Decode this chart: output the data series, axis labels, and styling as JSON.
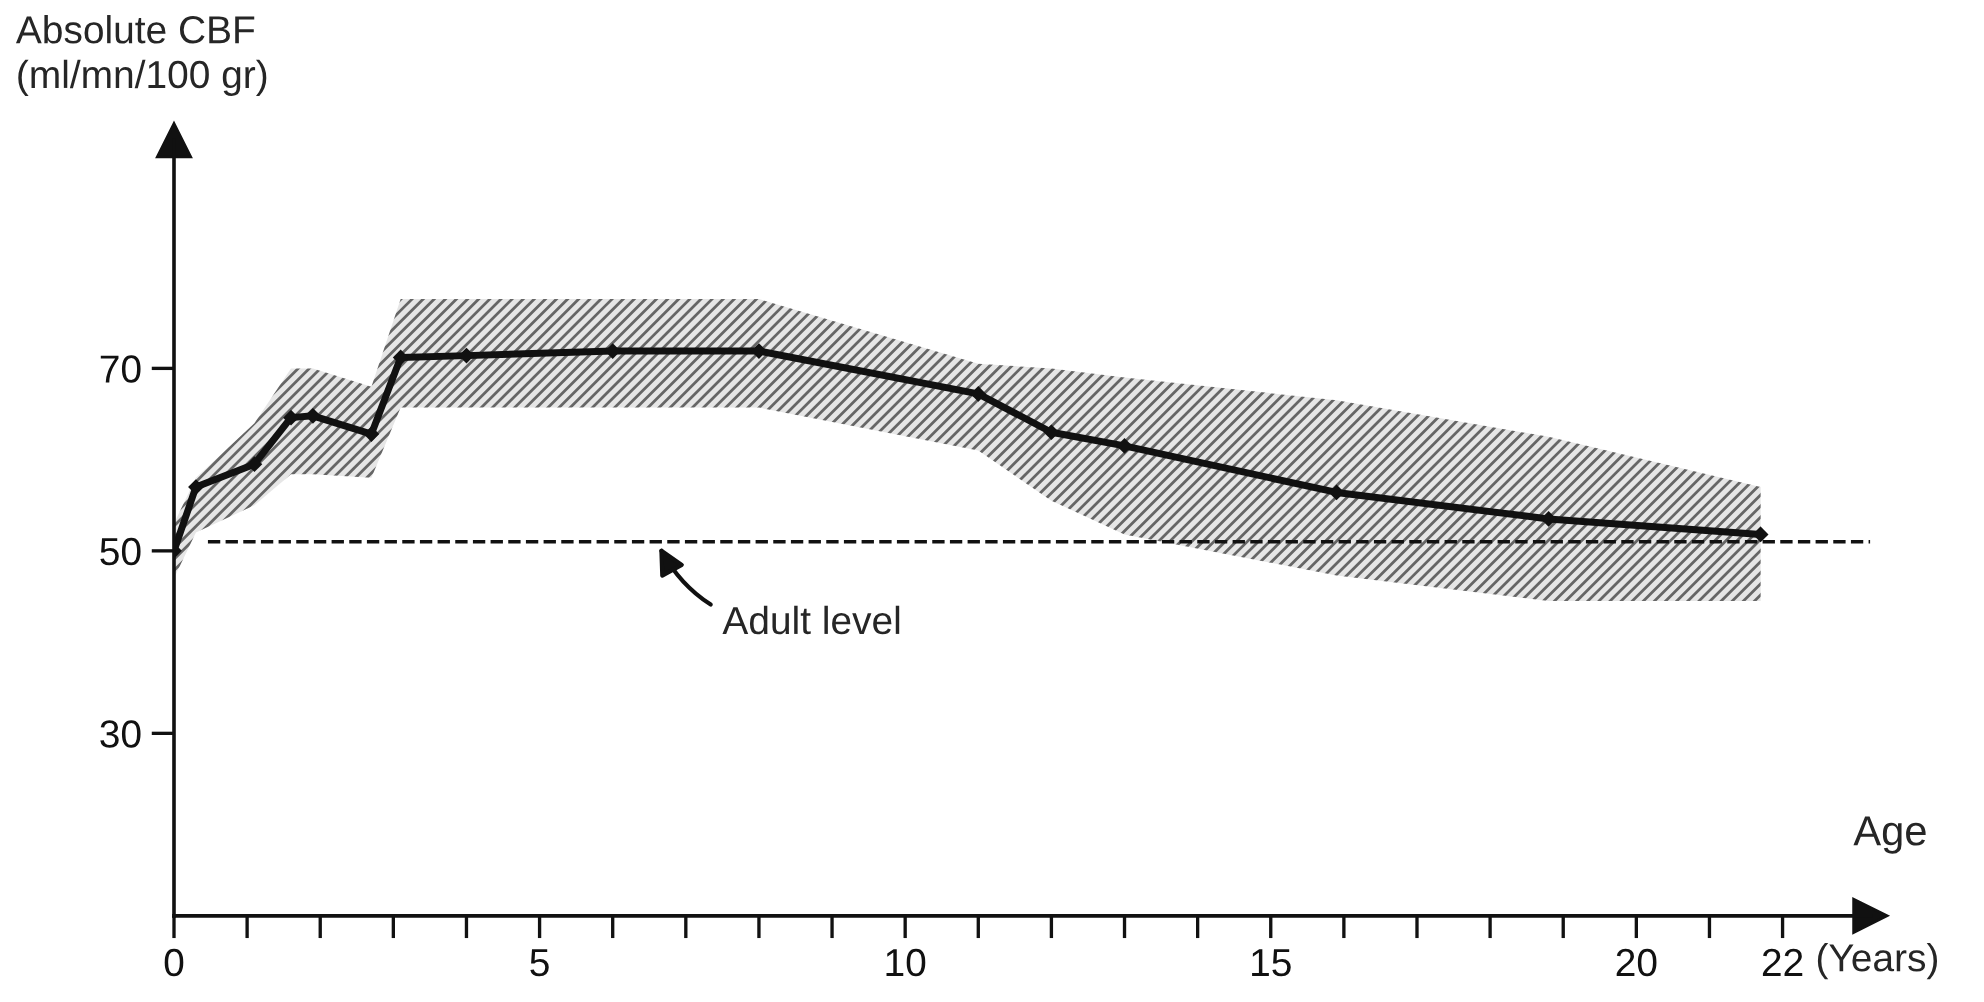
{
  "chart_data": {
    "type": "line",
    "ylabel": "Absolute CBF\n(ml/mn/100 gr)",
    "xlabel": "Age",
    "x": [
      0,
      0.3,
      1.1,
      1.6,
      1.9,
      2.7,
      3.1,
      4,
      6,
      8,
      11,
      12,
      13,
      15.9,
      18.8,
      21.7
    ],
    "series": [
      {
        "color": "#111111",
        "values": [
          50,
          57,
          59.5,
          64.6,
          64.8,
          62.8,
          71.2,
          71.4,
          71.9,
          71.9,
          67.2,
          63,
          61.5,
          56.4,
          53.5,
          51.8
        ],
        "upper": [
          53,
          58,
          64,
          70,
          70,
          68,
          77.6,
          77.6,
          77.6,
          77.6,
          70.5,
          70,
          69,
          66.5,
          62.5,
          57
        ],
        "lower": [
          47,
          52,
          55,
          58.4,
          58.4,
          58,
          65.7,
          65.7,
          65.7,
          65.7,
          61,
          55.5,
          51.8,
          47.3,
          44.5,
          44.5
        ]
      }
    ],
    "ref_lines": [
      {
        "axis": "y",
        "value": 51,
        "line_style": "dashed",
        "color": "#111111"
      }
    ],
    "annotations": [
      {
        "text": "Adult level",
        "x": 6.6,
        "y": 51
      },
      "(Years)"
    ],
    "xlim": [
      0,
      23.2
    ],
    "ylim": [
      10,
      95
    ],
    "xticks": [
      0,
      {
        "value": 1,
        "label": null
      },
      {
        "value": 2,
        "label": null
      },
      {
        "value": 3,
        "label": null
      },
      {
        "value": 4,
        "label": null
      },
      5,
      {
        "value": 6,
        "label": null
      },
      {
        "value": 7,
        "label": null
      },
      {
        "value": 8,
        "label": null
      },
      {
        "value": 9,
        "label": null
      },
      10,
      {
        "value": 11,
        "label": null
      },
      {
        "value": 12,
        "label": null
      },
      {
        "value": 13,
        "label": null
      },
      {
        "value": 14,
        "label": null
      },
      15,
      {
        "value": 16,
        "label": null
      },
      {
        "value": 17,
        "label": null
      },
      {
        "value": 18,
        "label": null
      },
      {
        "value": 19,
        "label": null
      },
      20,
      {
        "value": 21,
        "label": null
      },
      22
    ],
    "yticks": [
      30,
      50,
      70
    ],
    "marker": "diamond",
    "line_style": "solid",
    "grid": false,
    "legend": false
  }
}
